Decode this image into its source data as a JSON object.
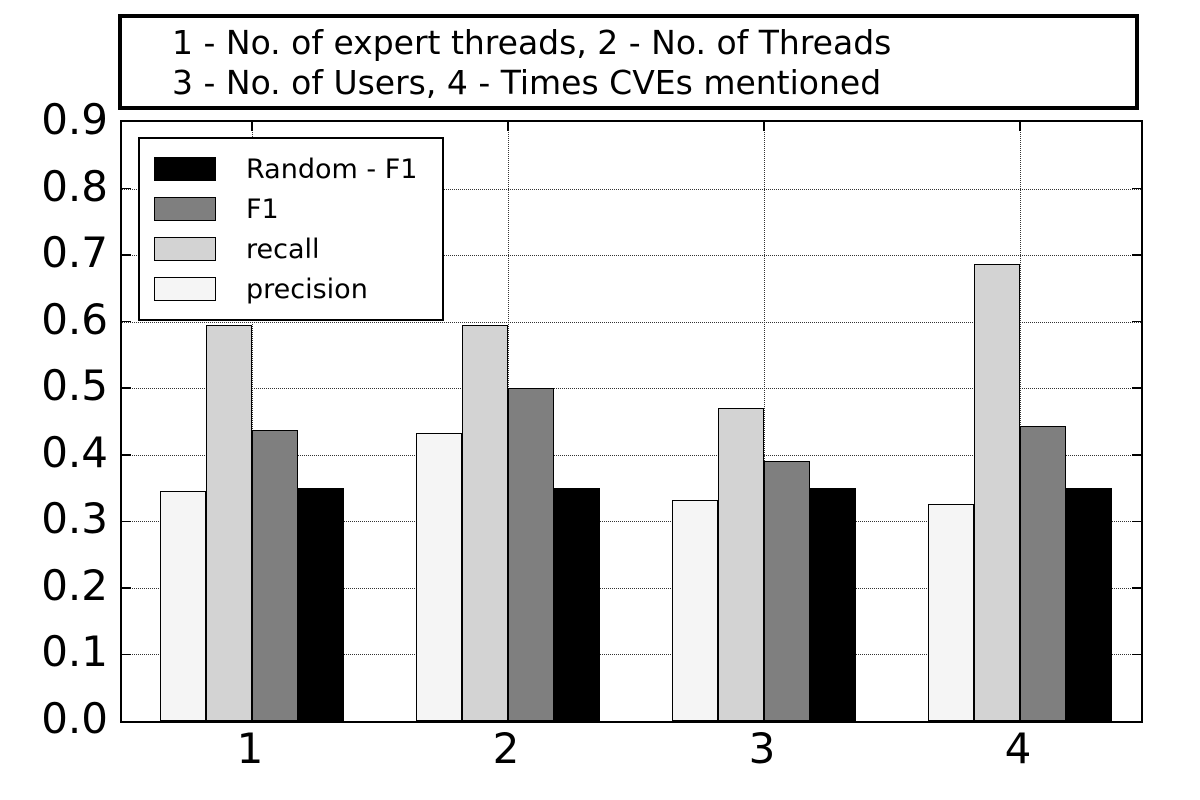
{
  "figure": {
    "title_line1": "1 - No. of expert threads, 2 - No. of Threads",
    "title_line2": "3 - No. of Users, 4 - Times CVEs mentioned"
  },
  "axes": {
    "yticklabels": [
      "0.0",
      "0.1",
      "0.2",
      "0.3",
      "0.4",
      "0.5",
      "0.6",
      "0.7",
      "0.8",
      "0.9"
    ],
    "xticklabels": [
      "1",
      "2",
      "3",
      "4"
    ]
  },
  "legend": {
    "items": [
      "Random - F1",
      "F1",
      "recall",
      "precision"
    ]
  },
  "colors": {
    "precision": "#f5f5f5",
    "recall": "#d3d3d3",
    "F1": "#7f7f7f",
    "Random - F1": "#000000",
    "bar_edge": "#000000",
    "grid": "#333333"
  },
  "chart_data": {
    "type": "bar",
    "title": "1 - No. of expert threads, 2 - No. of Threads\n3 - No. of Users, 4 - Times CVEs mentioned",
    "categories": [
      "1",
      "2",
      "3",
      "4"
    ],
    "series": [
      {
        "name": "precision",
        "color": "#f5f5f5",
        "values": [
          0.345,
          0.432,
          0.332,
          0.326
        ]
      },
      {
        "name": "recall",
        "color": "#d3d3d3",
        "values": [
          0.595,
          0.595,
          0.47,
          0.687
        ]
      },
      {
        "name": "F1",
        "color": "#7f7f7f",
        "values": [
          0.437,
          0.5,
          0.39,
          0.443
        ]
      },
      {
        "name": "Random - F1",
        "color": "#000000",
        "values": [
          0.35,
          0.35,
          0.35,
          0.35
        ]
      }
    ],
    "xlabel": "",
    "ylabel": "",
    "ylim": [
      0,
      0.9
    ],
    "yticks": [
      0.0,
      0.1,
      0.2,
      0.3,
      0.4,
      0.5,
      0.6,
      0.7,
      0.8,
      0.9
    ],
    "grid": true,
    "legend_position": "upper left",
    "bar_order_left_to_right": [
      "precision",
      "recall",
      "F1",
      "Random - F1"
    ]
  }
}
